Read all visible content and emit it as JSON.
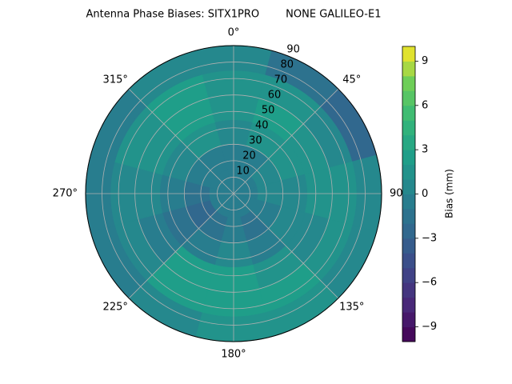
{
  "chart_data": {
    "type": "polar_contour",
    "title": "Antenna Phase Biases: SITX1PRO        NONE GALILEO-E1",
    "theta": [
      0,
      30,
      60,
      90,
      120,
      150,
      180,
      210,
      240,
      270,
      300,
      330
    ],
    "r": [
      7.5,
      22.5,
      37.5,
      52.5,
      67.5,
      82.5
    ],
    "values": [
      [
        -1,
        -1,
        0,
        1,
        1,
        0
      ],
      [
        -1,
        -1,
        1,
        2,
        1,
        -2
      ],
      [
        -1,
        0,
        1,
        1,
        0,
        -3
      ],
      [
        -1,
        0,
        0,
        1,
        1,
        0
      ],
      [
        -1,
        -1,
        0,
        0,
        1,
        0
      ],
      [
        -1,
        -2,
        -1,
        1,
        2,
        1
      ],
      [
        -1,
        -1,
        0,
        2,
        2,
        1
      ],
      [
        -1,
        -2,
        -1,
        2,
        2,
        0
      ],
      [
        -1,
        -3,
        -2,
        -1,
        0,
        -1
      ],
      [
        -1,
        -2,
        -1,
        0,
        0,
        -1
      ],
      [
        -1,
        -1,
        0,
        1,
        1,
        -1
      ],
      [
        -1,
        -1,
        1,
        2,
        2,
        0
      ]
    ],
    "rlim": [
      0,
      90
    ],
    "rticks": [
      10,
      20,
      30,
      40,
      50,
      60,
      70,
      80,
      90
    ],
    "thetaticks": [
      {
        "value": 0,
        "label": "0°"
      },
      {
        "value": 45,
        "label": "45°"
      },
      {
        "value": 90,
        "label": "90"
      },
      {
        "value": 135,
        "label": "135°"
      },
      {
        "value": 180,
        "label": "180°"
      },
      {
        "value": 225,
        "label": "225°"
      },
      {
        "value": 270,
        "label": "270°"
      },
      {
        "value": 315,
        "label": "315°"
      }
    ],
    "clim": [
      -10,
      10
    ],
    "cticks": [
      {
        "value": -9,
        "label": "−9"
      },
      {
        "value": -6,
        "label": "−6"
      },
      {
        "value": -3,
        "label": "−3"
      },
      0,
      3,
      6,
      9
    ],
    "levels": 20,
    "colormap": "viridis",
    "colorbar_label": "Bias (mm)",
    "grid": true
  }
}
